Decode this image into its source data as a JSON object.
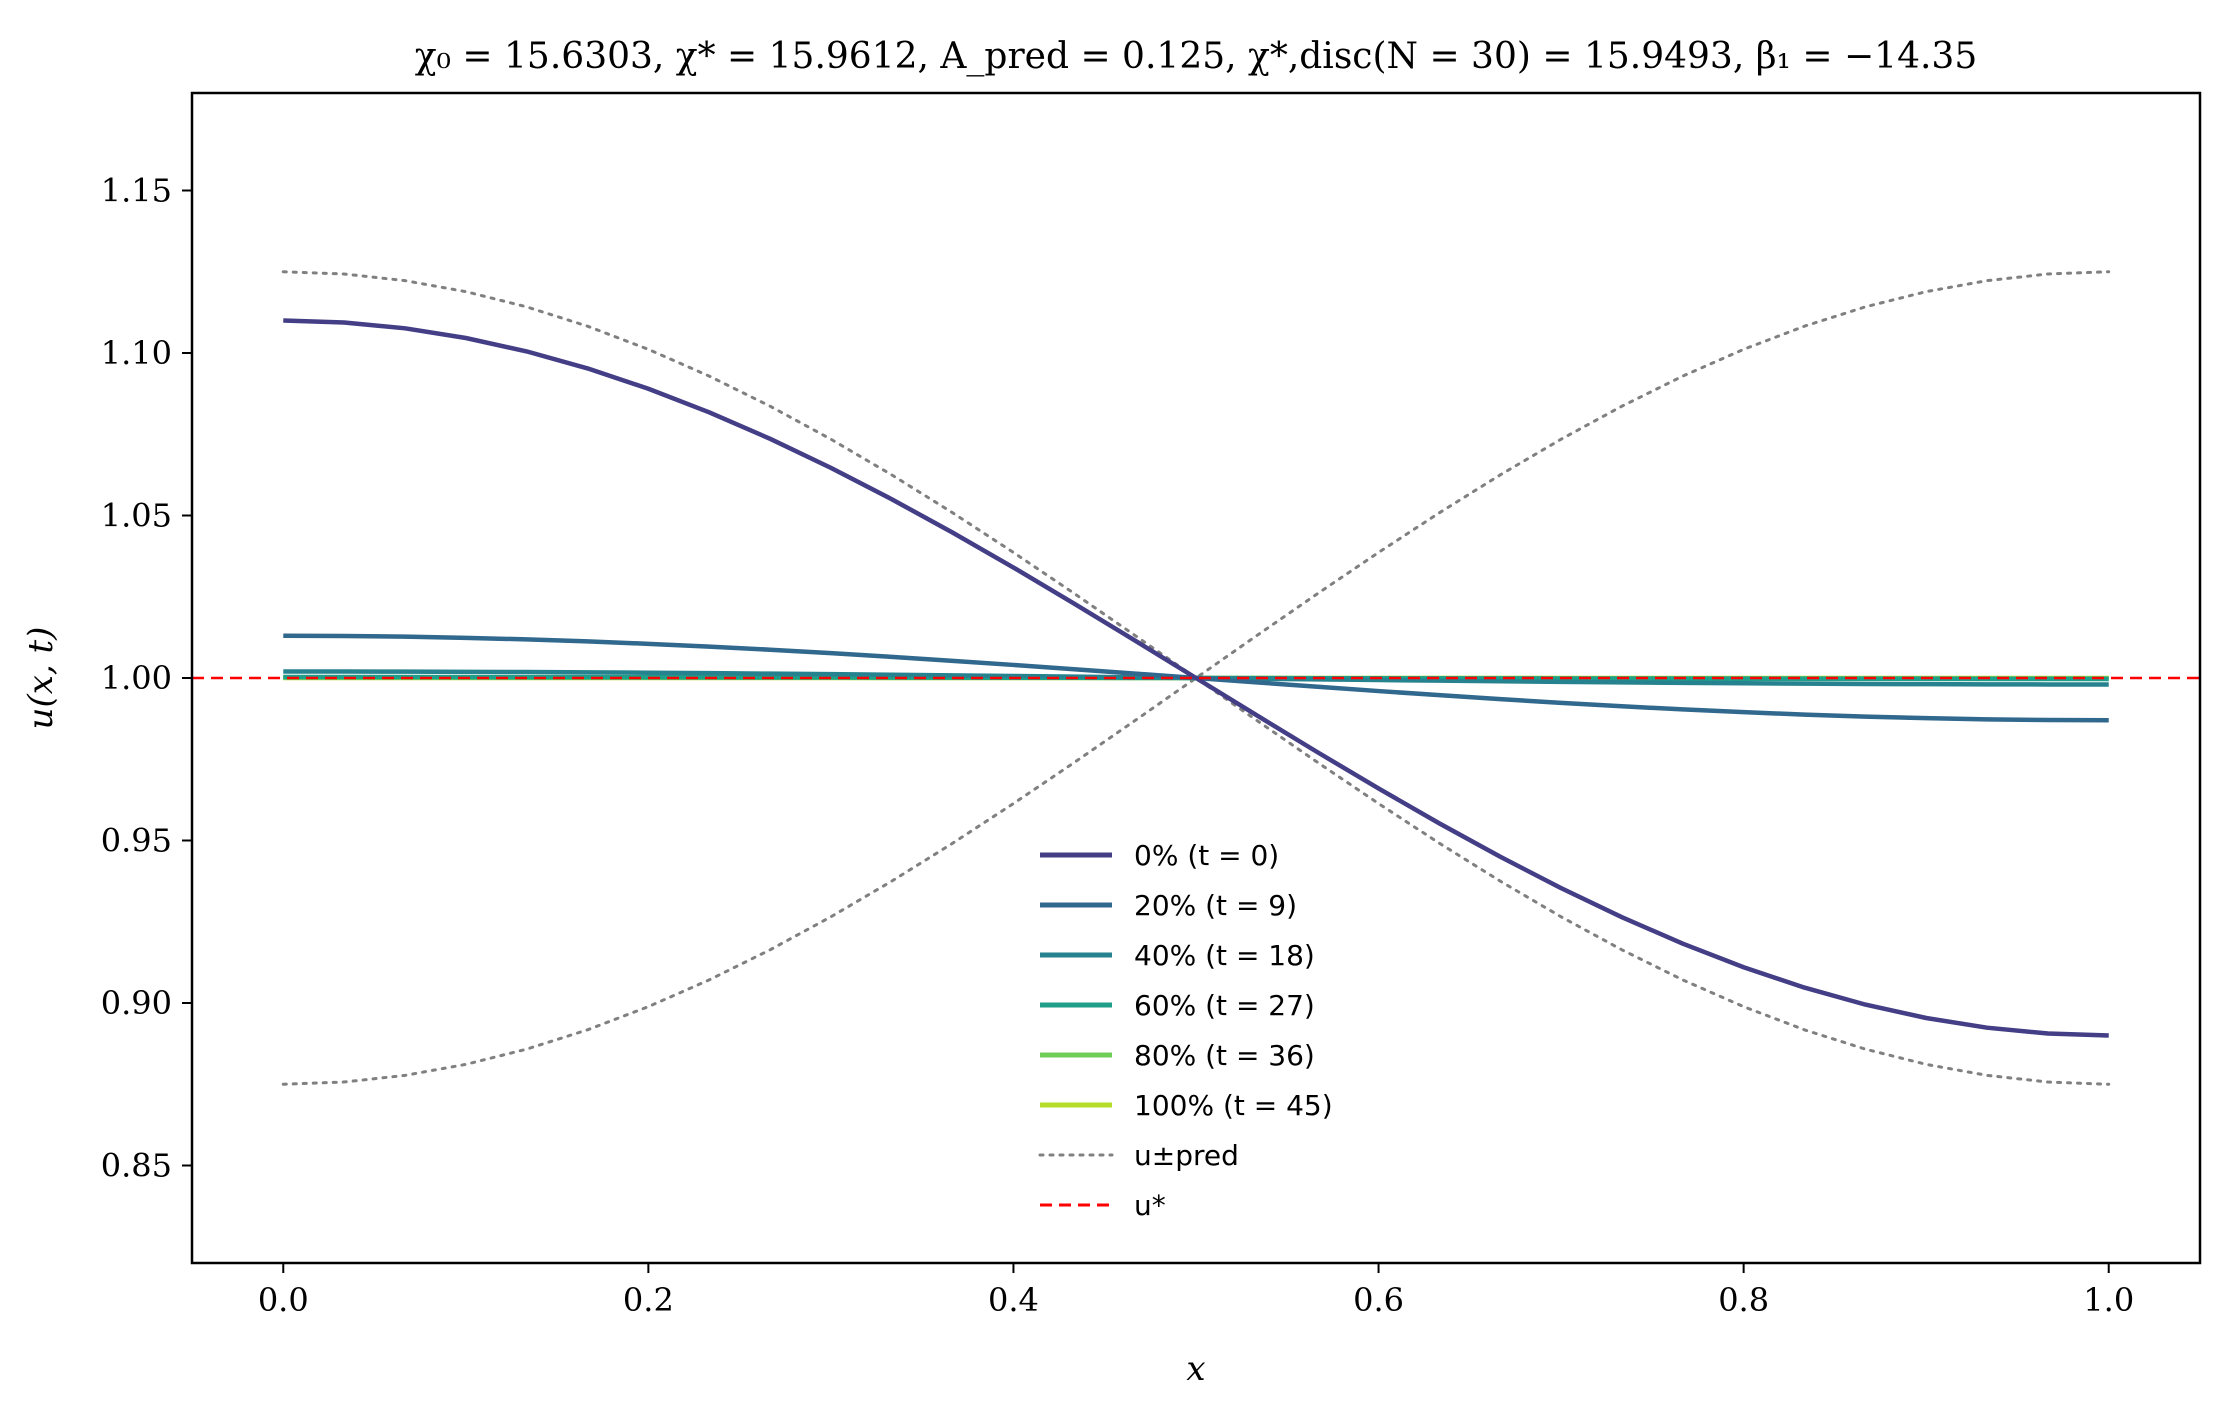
{
  "chart_data": {
    "type": "line",
    "title": "χ₀ = 15.6303,  χ* = 15.9612,  A_pred = 0.125,  χ*,disc(N = 30) = 15.9493,  β₁ = −14.35",
    "xlabel": "x",
    "ylabel": "u(x, t)",
    "xlim": [
      -0.05,
      1.05
    ],
    "ylim": [
      0.82,
      1.18
    ],
    "xticks": [
      0.0,
      0.2,
      0.4,
      0.6,
      0.8,
      1.0
    ],
    "xtick_labels": [
      "0.0",
      "0.2",
      "0.4",
      "0.6",
      "0.8",
      "1.0"
    ],
    "yticks": [
      0.85,
      0.9,
      0.95,
      1.0,
      1.05,
      1.1,
      1.15
    ],
    "ytick_labels": [
      "0.85",
      "0.90",
      "0.95",
      "1.00",
      "1.05",
      "1.10",
      "1.15"
    ],
    "grid": false,
    "legend_position": "lower-center",
    "x": [
      0.0,
      0.0333,
      0.0667,
      0.1,
      0.1333,
      0.1667,
      0.2,
      0.2333,
      0.2667,
      0.3,
      0.3333,
      0.3667,
      0.4,
      0.4333,
      0.4667,
      0.5,
      0.5333,
      0.5667,
      0.6,
      0.6333,
      0.6667,
      0.7,
      0.7333,
      0.7667,
      0.8,
      0.8333,
      0.8667,
      0.9,
      0.9333,
      0.9667,
      1.0
    ],
    "series": [
      {
        "name": "0% (t = 0)",
        "color": "#433e85",
        "amplitude": 0.11,
        "style": "solid"
      },
      {
        "name": "20% (t = 9)",
        "color": "#31688e",
        "amplitude": 0.013,
        "style": "solid"
      },
      {
        "name": "40% (t = 18)",
        "color": "#26828e",
        "amplitude": 0.002,
        "style": "solid"
      },
      {
        "name": "60% (t = 27)",
        "color": "#1f9e89",
        "amplitude": 0.0003,
        "style": "solid"
      },
      {
        "name": "80% (t = 36)",
        "color": "#6ece58",
        "amplitude": 0.0001,
        "style": "solid"
      },
      {
        "name": "100% (t = 45)",
        "color": "#b5de2b",
        "amplitude": 0.0,
        "style": "solid"
      },
      {
        "name": "u±pred",
        "color": "#808080",
        "amplitude": 0.125,
        "style": "dotted",
        "mirrored": true
      },
      {
        "name": "u*",
        "color": "#ff0000",
        "value": 1.0,
        "style": "dashed",
        "horizontal": true
      }
    ]
  }
}
